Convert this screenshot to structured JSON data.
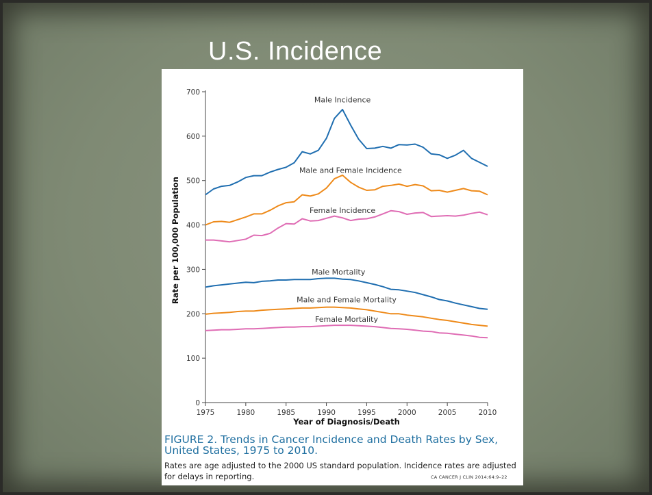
{
  "slide": {
    "title": "U.S. Incidence"
  },
  "figure": {
    "caption_title": "FIGURE 2. Trends in Cancer Incidence and Death Rates by Sex, United States, 1975 to 2010.",
    "caption_body": "Rates are age adjusted to the 2000 US standard population. Incidence rates are adjusted for delays in reporting.",
    "citation": "CA CANCER J CLIN 2014;64:9–22"
  },
  "chart_data": {
    "type": "line",
    "title": "",
    "xlabel": "Year of Diagnosis/Death",
    "ylabel": "Rate per 100,000 Population",
    "xlim": [
      1975,
      2010
    ],
    "ylim": [
      0,
      700
    ],
    "xticks": [
      1975,
      1980,
      1985,
      1990,
      1995,
      2000,
      2005,
      2010
    ],
    "yticks": [
      0,
      100,
      200,
      300,
      400,
      500,
      600,
      700
    ],
    "grid": false,
    "legend": "inline labels",
    "x": [
      1975,
      1976,
      1977,
      1978,
      1979,
      1980,
      1981,
      1982,
      1983,
      1984,
      1985,
      1986,
      1987,
      1988,
      1989,
      1990,
      1991,
      1992,
      1993,
      1994,
      1995,
      1996,
      1997,
      1998,
      1999,
      2000,
      2001,
      2002,
      2003,
      2004,
      2005,
      2006,
      2007,
      2008,
      2009,
      2010
    ],
    "series": [
      {
        "name": "Male Incidence",
        "color": "#1f6eb0",
        "values": [
          468,
          481,
          487,
          489,
          497,
          507,
          511,
          511,
          519,
          525,
          530,
          540,
          565,
          560,
          568,
          595,
          640,
          660,
          625,
          593,
          572,
          573,
          577,
          573,
          581,
          580,
          582,
          575,
          560,
          558,
          550,
          557,
          568,
          550,
          541,
          532
        ]
      },
      {
        "name": "Male and Female Incidence",
        "color": "#ee8a1a",
        "values": [
          400,
          407,
          408,
          406,
          412,
          418,
          425,
          425,
          433,
          443,
          450,
          452,
          468,
          465,
          470,
          483,
          504,
          512,
          496,
          485,
          478,
          479,
          487,
          489,
          492,
          487,
          491,
          488,
          477,
          478,
          474,
          478,
          482,
          477,
          476,
          468
        ]
      },
      {
        "name": "Female Incidence",
        "color": "#df6cb4",
        "values": [
          366,
          366,
          364,
          362,
          365,
          368,
          377,
          376,
          381,
          393,
          403,
          402,
          414,
          409,
          410,
          415,
          420,
          416,
          410,
          413,
          414,
          418,
          425,
          432,
          430,
          424,
          427,
          428,
          419,
          420,
          421,
          420,
          422,
          426,
          429,
          423
        ]
      },
      {
        "name": "Male Mortality",
        "color": "#1f6eb0",
        "values": [
          260,
          263,
          265,
          267,
          269,
          271,
          270,
          273,
          274,
          276,
          276,
          277,
          277,
          277,
          279,
          280,
          280,
          278,
          277,
          274,
          270,
          266,
          261,
          255,
          254,
          251,
          248,
          243,
          238,
          232,
          229,
          224,
          220,
          216,
          212,
          210
        ]
      },
      {
        "name": "Male and Female Mortality",
        "color": "#ee8a1a",
        "values": [
          199,
          201,
          202,
          203,
          205,
          206,
          206,
          208,
          209,
          210,
          211,
          212,
          213,
          213,
          214,
          215,
          215,
          214,
          213,
          211,
          209,
          206,
          203,
          200,
          200,
          197,
          195,
          193,
          190,
          187,
          185,
          182,
          179,
          176,
          174,
          172
        ]
      },
      {
        "name": "Female Mortality",
        "color": "#df6cb4",
        "values": [
          162,
          163,
          164,
          164,
          165,
          166,
          166,
          167,
          168,
          169,
          170,
          170,
          171,
          171,
          172,
          173,
          174,
          174,
          174,
          173,
          172,
          171,
          169,
          167,
          166,
          165,
          163,
          161,
          160,
          157,
          156,
          154,
          152,
          150,
          147,
          146
        ]
      }
    ]
  }
}
